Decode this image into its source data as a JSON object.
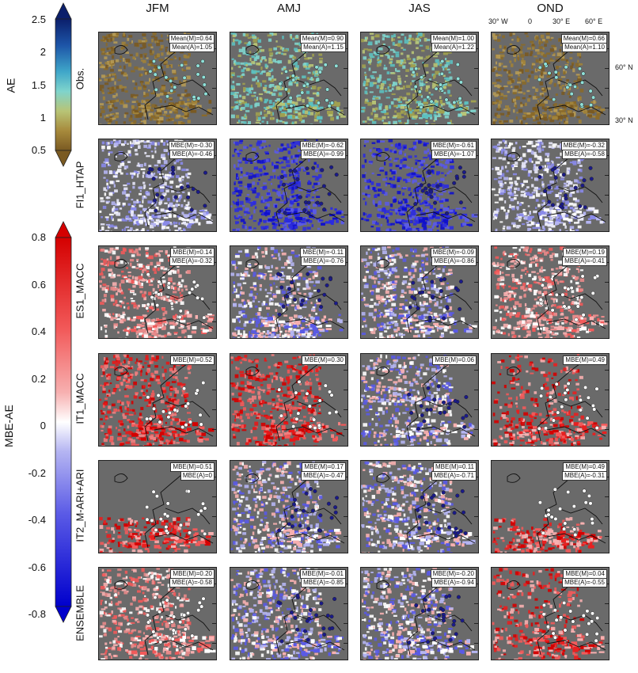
{
  "columns": [
    "JFM",
    "AMJ",
    "JAS",
    "OND"
  ],
  "rows": [
    "Obs.",
    "FI1_HTAP",
    "ES1_MACC",
    "IT1_MACC",
    "IT2_M-ARI+ARI",
    "ENSEMBLE"
  ],
  "colorbar_ae": {
    "title": "AE",
    "ticks": [
      "2.5",
      "2",
      "1.5",
      "1",
      "0.5"
    ],
    "gradient": [
      "#0b1f6b",
      "#1d55a8",
      "#3fa6c9",
      "#7fd4cc",
      "#b8c476",
      "#a78a3c",
      "#7a5a22"
    ]
  },
  "colorbar_mbe": {
    "title": "MBE-AE",
    "ticks": [
      "0.8",
      "0.6",
      "0.4",
      "0.2",
      "0",
      "-0.2",
      "-0.4",
      "-0.6",
      "-0.8"
    ],
    "gradient": [
      "#d40000",
      "#f25a5a",
      "#f7a6a6",
      "#ffffff",
      "#a9a9f0",
      "#5a5ae6",
      "#0000cc"
    ]
  },
  "geo_labels": {
    "lon": [
      "30° W",
      "0",
      "30° E",
      "60° E"
    ],
    "lat": [
      "60° N",
      "30° N"
    ]
  },
  "panels": [
    [
      {
        "s1": "Mean(M)=0.64",
        "s2": "Mean(A)=1.05",
        "tone": "obs-low"
      },
      {
        "s1": "Mean(M)=0.90",
        "s2": "Mean(A)=1.15",
        "tone": "obs-high"
      },
      {
        "s1": "Mean(M)=1.00",
        "s2": "Mean(A)=1.22",
        "tone": "obs-high"
      },
      {
        "s1": "Mean(M)=0.66",
        "s2": "Mean(A)=1.10",
        "tone": "obs-low"
      }
    ],
    [
      {
        "s1": "MBE(M)=-0.30",
        "s2": "MBE(A)=-0.46",
        "tone": "blue-mild"
      },
      {
        "s1": "MBE(M)=-0.62",
        "s2": "MBE(A)=-0.99",
        "tone": "blue-strong"
      },
      {
        "s1": "MBE(M)=-0.61",
        "s2": "MBE(A)=-1.07",
        "tone": "blue-strong"
      },
      {
        "s1": "MBE(M)=-0.32",
        "s2": "MBE(A)=-0.58",
        "tone": "blue-mild"
      }
    ],
    [
      {
        "s1": "MBE(M)=0.14",
        "s2": "MBE(A)=-0.32",
        "tone": "red-mild"
      },
      {
        "s1": "MBE(M)=-0.11",
        "s2": "MBE(A)=-0.76",
        "tone": "mixed"
      },
      {
        "s1": "MBE(M)=-0.09",
        "s2": "MBE(A)=-0.86",
        "tone": "mixed"
      },
      {
        "s1": "MBE(M)=0.19",
        "s2": "MBE(A)=-0.41",
        "tone": "red-mild"
      }
    ],
    [
      {
        "s1": "MBE(M)=0.52",
        "s2": "",
        "tone": "red-strong"
      },
      {
        "s1": "MBE(M)=0.30",
        "s2": "",
        "tone": "red-strong"
      },
      {
        "s1": "MBE(M)=0.06",
        "s2": "",
        "tone": "mixed"
      },
      {
        "s1": "MBE(M)=0.49",
        "s2": "",
        "tone": "red-sparse"
      }
    ],
    [
      {
        "s1": "MBE(M)=0.51",
        "s2": "MBE(A)=0",
        "tone": "red-south"
      },
      {
        "s1": "MBE(M)=0.17",
        "s2": "MBE(A)=-0.47",
        "tone": "mixed"
      },
      {
        "s1": "MBE(M)=0.11",
        "s2": "MBE(A)=-0.71",
        "tone": "mixed"
      },
      {
        "s1": "MBE(M)=0.49",
        "s2": "MBE(A)=-0.31",
        "tone": "red-south"
      }
    ],
    [
      {
        "s1": "MBE(M)=0.20",
        "s2": "MBE(A)=-0.58",
        "tone": "red-mild"
      },
      {
        "s1": "MBE(M)=-0.01",
        "s2": "MBE(A)=-0.85",
        "tone": "mixed"
      },
      {
        "s1": "MBE(M)=-0.20",
        "s2": "MBE(A)=-0.94",
        "tone": "mixed"
      },
      {
        "s1": "MBE(M)=0.04",
        "s2": "MBE(A)=-0.55",
        "tone": "red-sparse"
      }
    ]
  ]
}
